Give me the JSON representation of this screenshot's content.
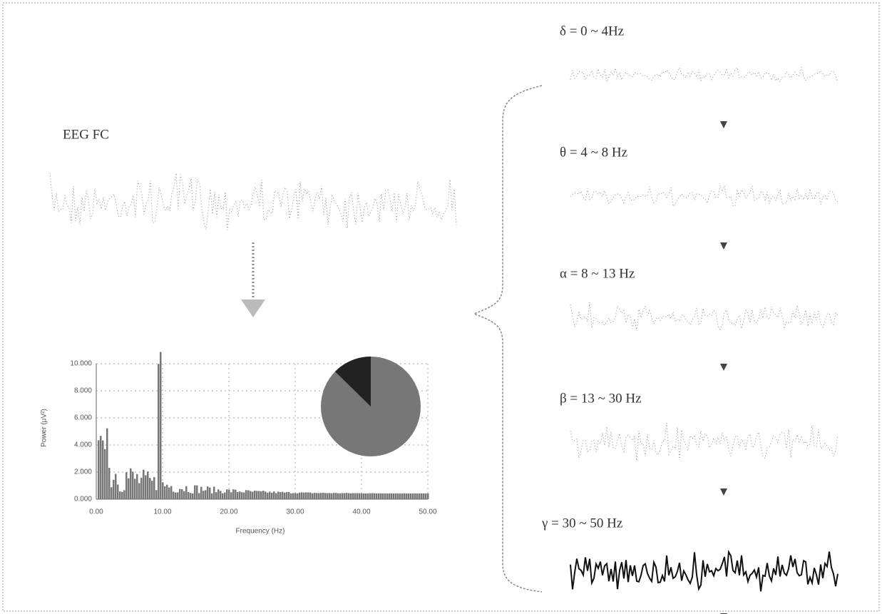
{
  "signal": {
    "label": "EEG FC"
  },
  "spectrum": {
    "y_label": "Power (μV²)",
    "x_label": "Frequency (Hz)",
    "y_ticks": [
      "0.000",
      "2.000",
      "4.000",
      "6.000",
      "8.000",
      "10.000"
    ],
    "x_ticks": [
      "0.00",
      "10.00",
      "20.00",
      "30.00",
      "40.00",
      "50.00"
    ]
  },
  "bands": [
    {
      "label": "δ = 0 ~ 4Hz"
    },
    {
      "label": "θ = 4 ~ 8 Hz"
    },
    {
      "label": "α = 8 ~ 13 Hz"
    },
    {
      "label": "β = 13 ~ 30 Hz"
    },
    {
      "label": "γ = 30 ~ 50 Hz"
    }
  ]
}
